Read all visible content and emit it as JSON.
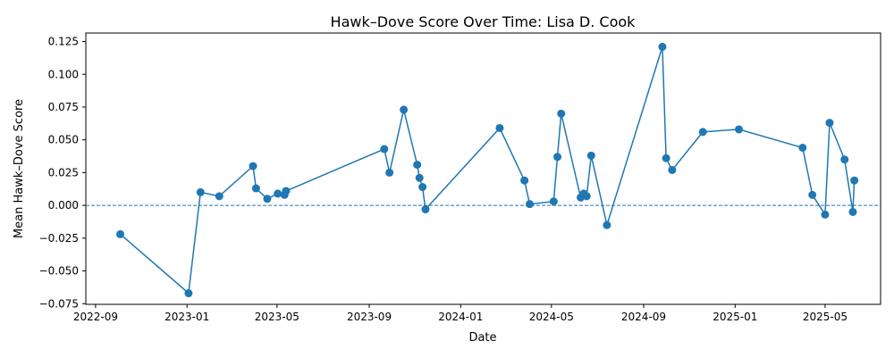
{
  "chart_data": {
    "type": "line",
    "title": "Hawk–Dove Score Over Time: Lisa D. Cook",
    "xlabel": "Date",
    "ylabel": "Mean Hawk–Dove Score",
    "x_axis_type": "date",
    "xlim": [
      "2022-08-19",
      "2025-07-14"
    ],
    "ylim": [
      -0.0755,
      0.1315
    ],
    "x_ticks": [
      {
        "date": "2022-09-01",
        "label": "2022-09"
      },
      {
        "date": "2023-01-01",
        "label": "2023-01"
      },
      {
        "date": "2023-05-01",
        "label": "2023-05"
      },
      {
        "date": "2023-09-01",
        "label": "2023-09"
      },
      {
        "date": "2024-01-01",
        "label": "2024-01"
      },
      {
        "date": "2024-05-01",
        "label": "2024-05"
      },
      {
        "date": "2024-09-01",
        "label": "2024-09"
      },
      {
        "date": "2025-01-01",
        "label": "2025-01"
      },
      {
        "date": "2025-05-01",
        "label": "2025-05"
      }
    ],
    "y_ticks": [
      {
        "value": -0.075,
        "label": "−0.075"
      },
      {
        "value": -0.05,
        "label": "−0.050"
      },
      {
        "value": -0.025,
        "label": "−0.025"
      },
      {
        "value": 0.0,
        "label": "0.000"
      },
      {
        "value": 0.025,
        "label": "0.025"
      },
      {
        "value": 0.05,
        "label": "0.050"
      },
      {
        "value": 0.075,
        "label": "0.075"
      },
      {
        "value": 0.1,
        "label": "0.100"
      },
      {
        "value": 0.125,
        "label": "0.125"
      }
    ],
    "reference_line": {
      "y": 0.0,
      "style": "dashed"
    },
    "grid": false,
    "series": [
      {
        "color": "#1f77b4",
        "points": [
          {
            "x": "2022-10-04",
            "y": -0.022
          },
          {
            "x": "2023-01-03",
            "y": -0.067
          },
          {
            "x": "2023-01-19",
            "y": 0.01
          },
          {
            "x": "2023-02-13",
            "y": 0.007
          },
          {
            "x": "2023-03-30",
            "y": 0.03
          },
          {
            "x": "2023-04-03",
            "y": 0.013
          },
          {
            "x": "2023-04-18",
            "y": 0.005
          },
          {
            "x": "2023-05-02",
            "y": 0.009
          },
          {
            "x": "2023-05-11",
            "y": 0.008
          },
          {
            "x": "2023-05-13",
            "y": 0.011
          },
          {
            "x": "2023-09-21",
            "y": 0.043
          },
          {
            "x": "2023-09-28",
            "y": 0.025
          },
          {
            "x": "2023-10-17",
            "y": 0.073
          },
          {
            "x": "2023-11-04",
            "y": 0.031
          },
          {
            "x": "2023-11-07",
            "y": 0.021
          },
          {
            "x": "2023-11-11",
            "y": 0.014
          },
          {
            "x": "2023-11-15",
            "y": -0.003
          },
          {
            "x": "2024-02-22",
            "y": 0.059
          },
          {
            "x": "2024-03-26",
            "y": 0.019
          },
          {
            "x": "2024-04-02",
            "y": 0.001
          },
          {
            "x": "2024-05-04",
            "y": 0.003
          },
          {
            "x": "2024-05-09",
            "y": 0.037
          },
          {
            "x": "2024-05-14",
            "y": 0.07
          },
          {
            "x": "2024-06-09",
            "y": 0.006
          },
          {
            "x": "2024-06-13",
            "y": 0.009
          },
          {
            "x": "2024-06-17",
            "y": 0.007
          },
          {
            "x": "2024-06-23",
            "y": 0.038
          },
          {
            "x": "2024-07-14",
            "y": -0.015
          },
          {
            "x": "2024-09-26",
            "y": 0.121
          },
          {
            "x": "2024-10-01",
            "y": 0.036
          },
          {
            "x": "2024-10-09",
            "y": 0.027
          },
          {
            "x": "2024-11-19",
            "y": 0.056
          },
          {
            "x": "2025-01-06",
            "y": 0.058
          },
          {
            "x": "2025-04-01",
            "y": 0.044
          },
          {
            "x": "2025-04-14",
            "y": 0.008
          },
          {
            "x": "2025-05-01",
            "y": -0.007
          },
          {
            "x": "2025-05-07",
            "y": 0.063
          },
          {
            "x": "2025-05-27",
            "y": 0.035
          },
          {
            "x": "2025-06-07",
            "y": -0.005
          },
          {
            "x": "2025-06-09",
            "y": 0.019
          }
        ]
      }
    ]
  }
}
